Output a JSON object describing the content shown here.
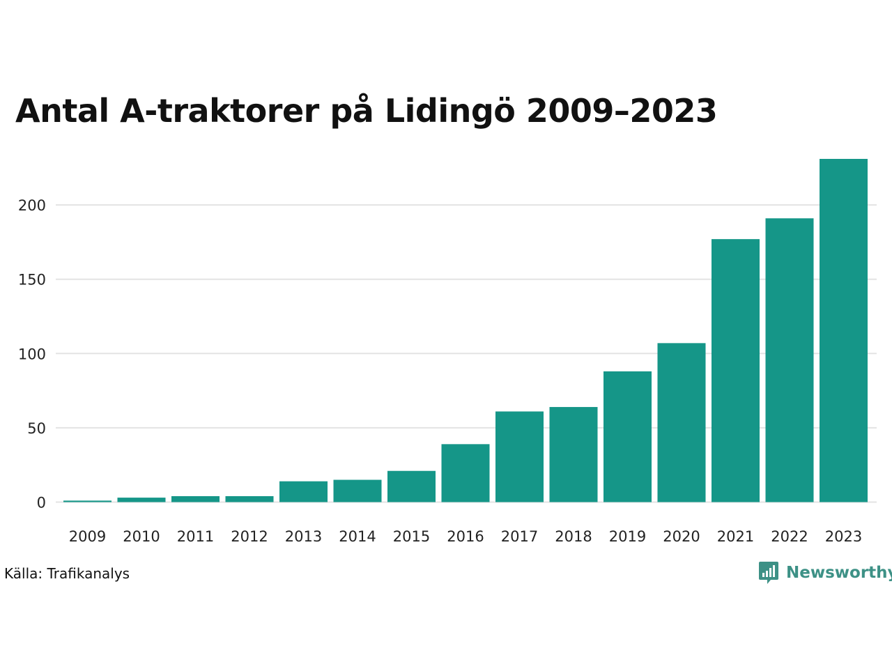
{
  "chart_data": {
    "type": "bar",
    "title": "Antal A-traktorer på Lidingö 2009–2023",
    "xlabel": "",
    "ylabel": "",
    "categories": [
      "2009",
      "2010",
      "2011",
      "2012",
      "2013",
      "2014",
      "2015",
      "2016",
      "2017",
      "2018",
      "2019",
      "2020",
      "2021",
      "2022",
      "2023"
    ],
    "values": [
      1,
      3,
      4,
      4,
      14,
      15,
      21,
      39,
      61,
      64,
      88,
      107,
      177,
      191,
      231
    ],
    "ylim": [
      0,
      231
    ],
    "yticks": [
      0,
      50,
      100,
      150,
      200
    ],
    "grid": true,
    "bar_color": "#159688",
    "grid_color": "#e3e3e3"
  },
  "footer": {
    "source": "Källa: Trafikanalys",
    "brand": "Newsworthy",
    "brand_color": "#3d9186"
  }
}
